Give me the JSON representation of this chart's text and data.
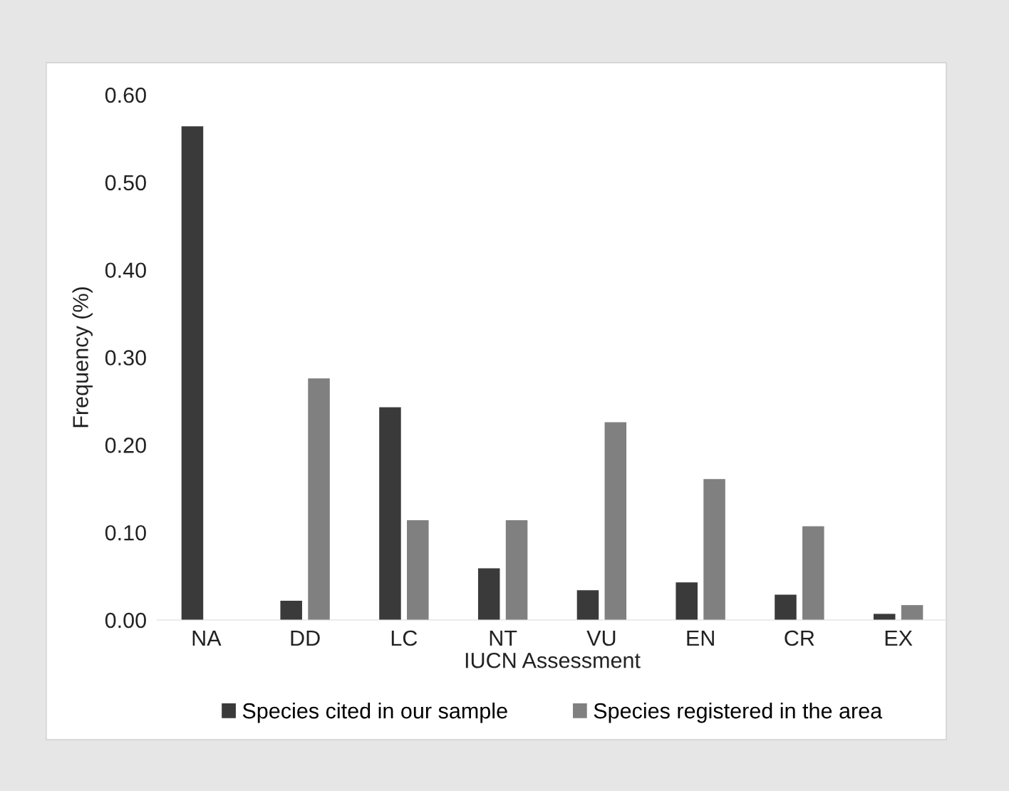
{
  "chart_data": {
    "type": "bar",
    "xlabel": "IUCN Assessment",
    "ylabel": "Frequency (%)",
    "categories": [
      "NA",
      "DD",
      "LC",
      "NT",
      "VU",
      "EN",
      "CR",
      "EX"
    ],
    "series": [
      {
        "name": "Species cited in our sample",
        "color": "#3a3a3a",
        "values": [
          0.564,
          0.022,
          0.243,
          0.059,
          0.034,
          0.043,
          0.029,
          0.007
        ]
      },
      {
        "name": "Species registered in the area",
        "color": "#808080",
        "values": [
          0,
          0.276,
          0.114,
          0.114,
          0.226,
          0.161,
          0.107,
          0.017
        ]
      }
    ],
    "ylim": [
      0,
      0.6
    ],
    "yticks": [
      {
        "value": 0,
        "label": "0.00"
      },
      {
        "value": 0.1,
        "label": "0.10"
      },
      {
        "value": 0.2,
        "label": "0.20"
      },
      {
        "value": 0.3,
        "label": "0.30"
      },
      {
        "value": 0.4,
        "label": "0.40"
      },
      {
        "value": 0.5,
        "label": "0.50"
      },
      {
        "value": 0.6,
        "label": "0.60"
      }
    ],
    "grid": false,
    "legend": "bottom"
  }
}
